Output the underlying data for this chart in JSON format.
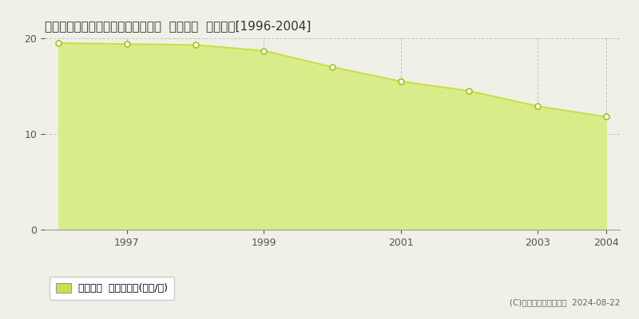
{
  "title": "大阪府河内長野市日野５１３番１外  地価公示  地価推移[1996-2004]",
  "years": [
    1996,
    1997,
    1998,
    1999,
    2000,
    2001,
    2002,
    2003,
    2004
  ],
  "values": [
    19.5,
    19.4,
    19.3,
    18.7,
    17.0,
    15.5,
    14.5,
    12.9,
    11.8
  ],
  "ylim": [
    0,
    20
  ],
  "yticks": [
    0,
    10,
    20
  ],
  "xticks": [
    1997,
    1999,
    2001,
    2003,
    2004
  ],
  "line_color": "#c8e04a",
  "fill_color": "#d8ed8a",
  "marker_facecolor": "white",
  "marker_edgecolor": "#a8c020",
  "grid_color": "#bbbbbb",
  "background_color": "#f0f0e8",
  "legend_label": "地価公示  平均啶単価(万円/啶)",
  "copyright_text": "(C)土地価格ドットコム  2024-08-22",
  "title_fontsize": 11,
  "axis_fontsize": 9,
  "legend_fontsize": 9,
  "legend_marker_color": "#c8e04a"
}
